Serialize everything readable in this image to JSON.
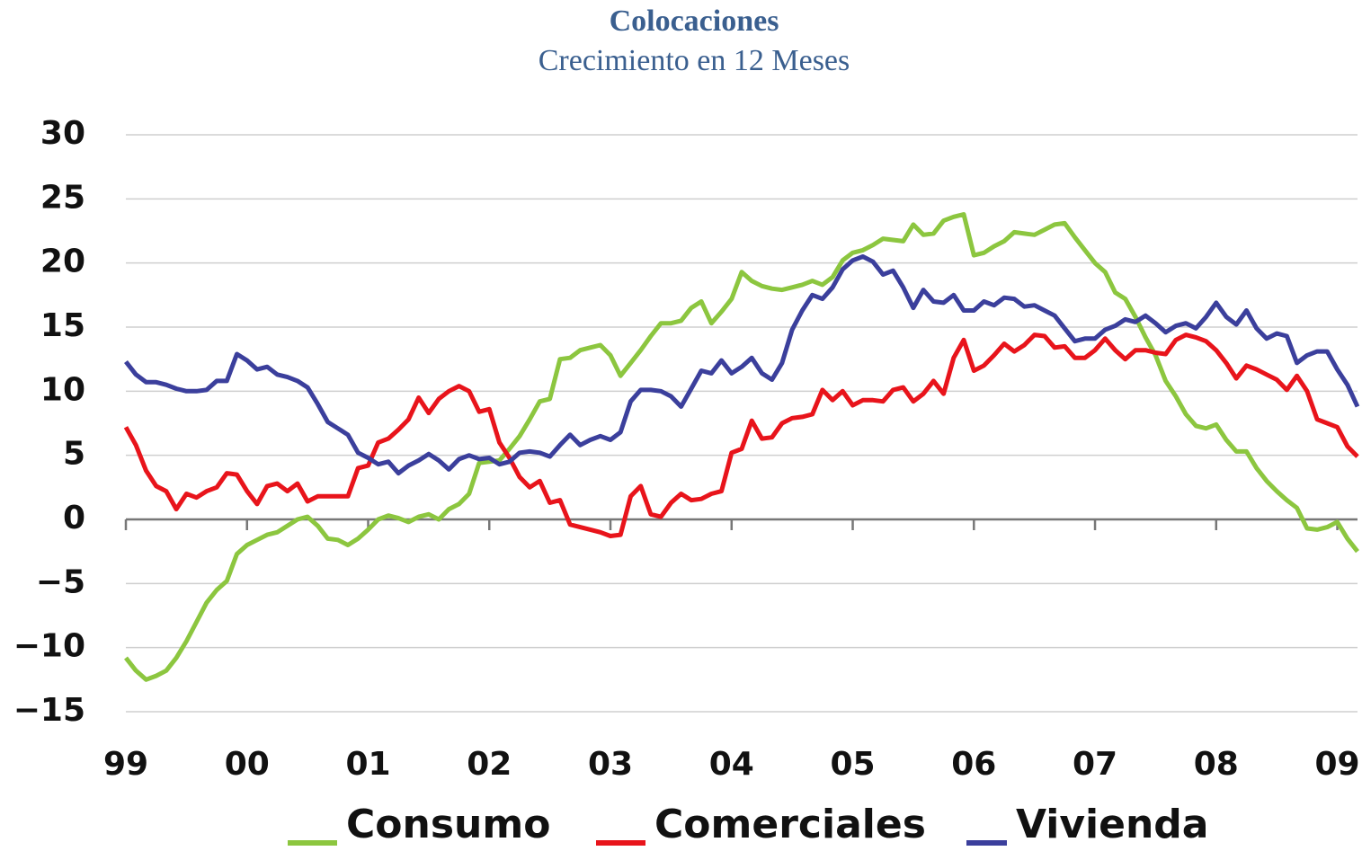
{
  "chart_data": {
    "type": "line",
    "title": "Colocaciones",
    "subtitle": "Crecimiento en 12 Meses",
    "categories": [
      "99",
      null,
      null,
      null,
      null,
      null,
      null,
      null,
      null,
      null,
      null,
      null,
      "00",
      null,
      null,
      null,
      null,
      null,
      null,
      null,
      null,
      null,
      null,
      null,
      "01",
      null,
      null,
      null,
      null,
      null,
      null,
      null,
      null,
      null,
      null,
      null,
      "02",
      null,
      null,
      null,
      null,
      null,
      null,
      null,
      null,
      null,
      null,
      null,
      "03",
      null,
      null,
      null,
      null,
      null,
      null,
      null,
      null,
      null,
      null,
      null,
      "04",
      null,
      null,
      null,
      null,
      null,
      null,
      null,
      null,
      null,
      null,
      null,
      "05",
      null,
      null,
      null,
      null,
      null,
      null,
      null,
      null,
      null,
      null,
      null,
      "06",
      null,
      null,
      null,
      null,
      null,
      null,
      null,
      null,
      null,
      null,
      null,
      "07",
      null,
      null,
      null,
      null,
      null,
      null,
      null,
      null,
      null,
      null,
      null,
      "08",
      null,
      null,
      null,
      null,
      null,
      null,
      null,
      null,
      null,
      null,
      null,
      "09",
      null,
      null
    ],
    "series": [
      {
        "name": "Consumo",
        "color": "#8cc63f",
        "values": [
          -10.8,
          -11.8,
          -12.5,
          -12.2,
          -11.8,
          -10.8,
          -9.5,
          -8.0,
          -6.5,
          -5.5,
          -4.8,
          -2.7,
          -2.0,
          -1.6,
          -1.2,
          -1.0,
          -0.5,
          0.0,
          0.2,
          -0.5,
          -1.5,
          -1.6,
          -2.0,
          -1.5,
          -0.8,
          0.0,
          0.3,
          0.1,
          -0.2,
          0.2,
          0.4,
          0.0,
          0.8,
          1.2,
          2.0,
          4.4,
          4.5,
          4.6,
          5.5,
          6.5,
          7.8,
          9.2,
          9.4,
          12.5,
          12.6,
          13.2,
          13.4,
          13.6,
          12.8,
          11.2,
          12.2,
          13.2,
          14.3,
          15.3,
          15.3,
          15.5,
          16.5,
          17.0,
          15.3,
          16.2,
          17.2,
          19.3,
          18.6,
          18.2,
          18.0,
          17.9,
          18.1,
          18.3,
          18.6,
          18.3,
          18.9,
          20.2,
          20.8,
          21.0,
          21.4,
          21.9,
          21.8,
          21.7,
          23.0,
          22.2,
          22.3,
          23.3,
          23.6,
          23.8,
          20.6,
          20.8,
          21.3,
          21.7,
          22.4,
          22.3,
          22.2,
          22.6,
          23.0,
          23.1,
          22.0,
          21.0,
          20.0,
          19.3,
          17.7,
          17.2,
          15.8,
          14.2,
          12.8,
          10.8,
          9.6,
          8.2,
          7.3,
          7.1,
          7.4,
          6.2,
          5.3,
          5.3,
          4.0,
          3.0,
          2.2,
          1.5,
          0.9,
          -0.7,
          -0.8,
          -0.6,
          -0.2,
          -1.5,
          -2.5
        ]
      },
      {
        "name": "Comerciales",
        "color": "#e8141b",
        "values": [
          7.2,
          5.8,
          3.8,
          2.6,
          2.2,
          0.8,
          2.0,
          1.7,
          2.2,
          2.5,
          3.6,
          3.5,
          2.2,
          1.2,
          2.6,
          2.8,
          2.2,
          2.8,
          1.4,
          1.8,
          1.8,
          1.8,
          1.8,
          4.0,
          4.2,
          6.0,
          6.3,
          7.0,
          7.8,
          9.5,
          8.3,
          9.4,
          10.0,
          10.4,
          10.0,
          8.4,
          8.6,
          6.0,
          4.8,
          3.3,
          2.5,
          3.0,
          1.3,
          1.5,
          -0.4,
          -0.6,
          -0.8,
          -1.0,
          -1.3,
          -1.2,
          1.8,
          2.6,
          0.4,
          0.2,
          1.3,
          2.0,
          1.5,
          1.6,
          2.0,
          2.2,
          5.2,
          5.5,
          7.7,
          6.3,
          6.4,
          7.5,
          7.9,
          8.0,
          8.2,
          10.1,
          9.3,
          10.0,
          8.9,
          9.3,
          9.3,
          9.2,
          10.1,
          10.3,
          9.2,
          9.8,
          10.8,
          9.8,
          12.6,
          14.0,
          11.6,
          12.0,
          12.8,
          13.7,
          13.1,
          13.6,
          14.4,
          14.3,
          13.4,
          13.5,
          12.6,
          12.6,
          13.2,
          14.1,
          13.2,
          12.5,
          13.2,
          13.2,
          13.0,
          12.9,
          14.0,
          14.4,
          14.2,
          13.9,
          13.2,
          12.2,
          11.0,
          12.0,
          11.7,
          11.3,
          10.9,
          10.1,
          11.2,
          10.0,
          7.8,
          7.5,
          7.2,
          5.7,
          4.9
        ]
      },
      {
        "name": "Vivienda",
        "color": "#3b3f9c",
        "values": [
          12.3,
          11.3,
          10.7,
          10.7,
          10.5,
          10.2,
          10.0,
          10.0,
          10.1,
          10.8,
          10.8,
          12.9,
          12.4,
          11.7,
          11.9,
          11.3,
          11.1,
          10.8,
          10.3,
          9.0,
          7.6,
          7.1,
          6.6,
          5.2,
          4.8,
          4.3,
          4.5,
          3.6,
          4.2,
          4.6,
          5.1,
          4.6,
          3.9,
          4.7,
          5.0,
          4.7,
          4.8,
          4.3,
          4.5,
          5.2,
          5.3,
          5.2,
          4.9,
          5.8,
          6.6,
          5.8,
          6.2,
          6.5,
          6.2,
          6.8,
          9.2,
          10.1,
          10.1,
          10.0,
          9.6,
          8.8,
          10.2,
          11.6,
          11.4,
          12.4,
          11.4,
          11.9,
          12.6,
          11.4,
          10.9,
          12.2,
          14.8,
          16.3,
          17.5,
          17.2,
          18.1,
          19.5,
          20.2,
          20.5,
          20.1,
          19.1,
          19.4,
          18.1,
          16.5,
          17.9,
          17.0,
          16.9,
          17.5,
          16.3,
          16.3,
          17.0,
          16.7,
          17.3,
          17.2,
          16.6,
          16.7,
          16.3,
          15.9,
          14.9,
          13.9,
          14.1,
          14.1,
          14.8,
          15.1,
          15.6,
          15.4,
          15.9,
          15.3,
          14.6,
          15.1,
          15.3,
          14.9,
          15.8,
          16.9,
          15.8,
          15.2,
          16.3,
          14.9,
          14.1,
          14.5,
          14.3,
          12.2,
          12.8,
          13.1,
          13.1,
          11.7,
          10.5,
          8.8
        ]
      }
    ],
    "ylim": [
      -15,
      30
    ],
    "yticks": [
      {
        "value": -15,
        "label": "−15"
      },
      {
        "value": -10,
        "label": "−10"
      },
      {
        "value": -5,
        "label": "−5"
      },
      0,
      5,
      10,
      15,
      20,
      25,
      30
    ],
    "grid": true
  }
}
